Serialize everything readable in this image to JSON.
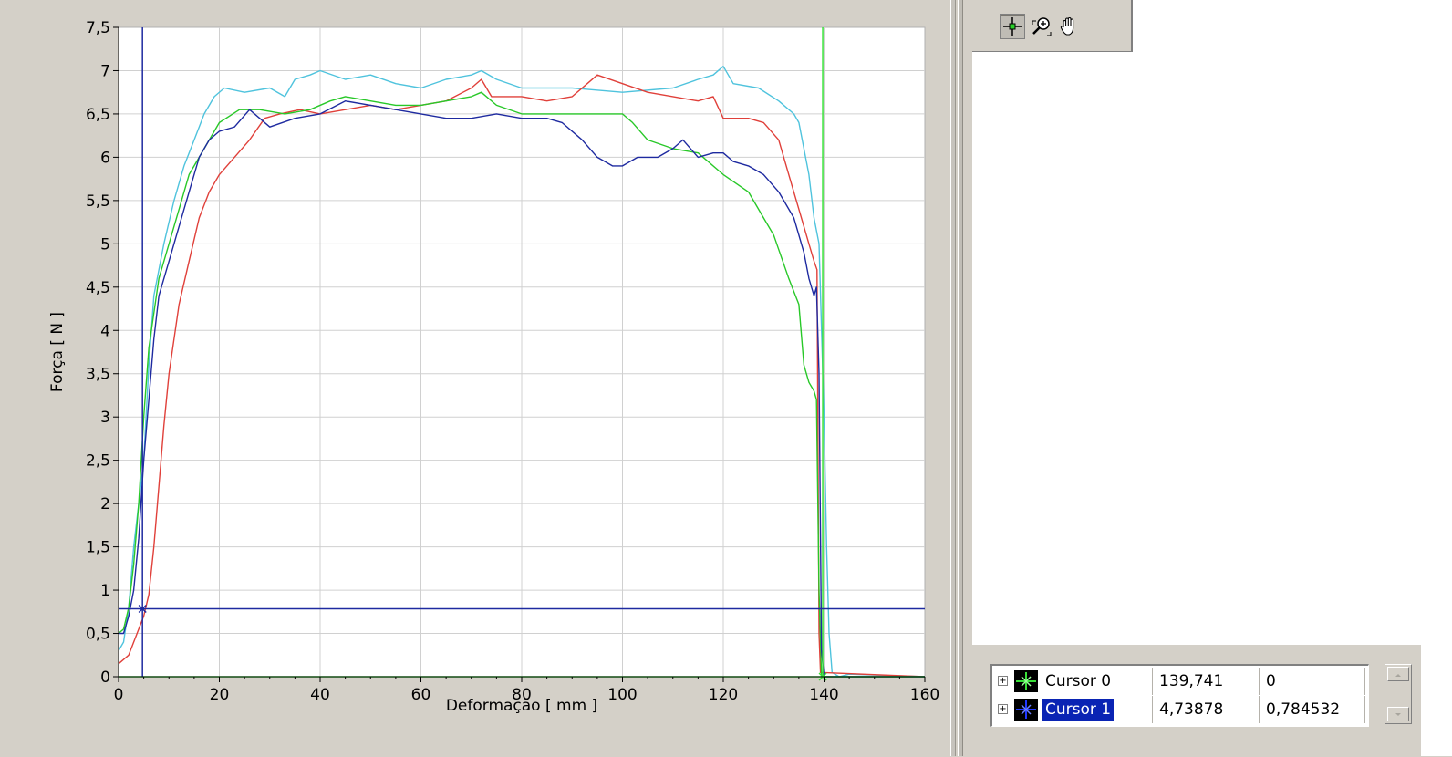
{
  "chart_data": {
    "type": "line",
    "xlabel": "Deformação [ mm ]",
    "ylabel": "Força [ N ]",
    "xlim": [
      0,
      160
    ],
    "ylim": [
      0,
      7.5
    ],
    "x_ticks": [
      "0",
      "20",
      "40",
      "60",
      "80",
      "100",
      "120",
      "140",
      "160"
    ],
    "y_ticks": [
      "0",
      "0,5",
      "1",
      "1,5",
      "2",
      "2,5",
      "3",
      "3,5",
      "4",
      "4,5",
      "5",
      "5,5",
      "6",
      "6,5",
      "7",
      "7,5"
    ],
    "grid": true,
    "series": [
      {
        "color": "#4fc3dd",
        "points": [
          [
            0,
            0.3
          ],
          [
            1,
            0.4
          ],
          [
            2,
            0.8
          ],
          [
            3,
            1.5
          ],
          [
            5,
            2.5
          ],
          [
            6,
            3.6
          ],
          [
            7,
            4.4
          ],
          [
            9,
            5.0
          ],
          [
            11,
            5.5
          ],
          [
            13,
            5.9
          ],
          [
            15,
            6.2
          ],
          [
            17,
            6.5
          ],
          [
            19,
            6.7
          ],
          [
            21,
            6.8
          ],
          [
            25,
            6.75
          ],
          [
            30,
            6.8
          ],
          [
            33,
            6.7
          ],
          [
            35,
            6.9
          ],
          [
            38,
            6.95
          ],
          [
            40,
            7.0
          ],
          [
            45,
            6.9
          ],
          [
            50,
            6.95
          ],
          [
            55,
            6.85
          ],
          [
            60,
            6.8
          ],
          [
            65,
            6.9
          ],
          [
            70,
            6.95
          ],
          [
            72,
            7.0
          ],
          [
            75,
            6.9
          ],
          [
            80,
            6.8
          ],
          [
            90,
            6.8
          ],
          [
            100,
            6.75
          ],
          [
            110,
            6.8
          ],
          [
            115,
            6.9
          ],
          [
            118,
            6.95
          ],
          [
            120,
            7.05
          ],
          [
            122,
            6.85
          ],
          [
            127,
            6.8
          ],
          [
            131,
            6.65
          ],
          [
            134,
            6.5
          ],
          [
            135,
            6.4
          ],
          [
            137,
            5.8
          ],
          [
            138,
            5.3
          ],
          [
            139,
            5.0
          ],
          [
            140,
            3.0
          ],
          [
            140.5,
            1.5
          ],
          [
            141,
            0.5
          ],
          [
            141.6,
            0.05
          ],
          [
            143,
            0.0
          ],
          [
            145,
            0.03
          ],
          [
            160,
            0.0
          ]
        ]
      },
      {
        "color": "#e0403a",
        "points": [
          [
            0,
            0.15
          ],
          [
            2,
            0.25
          ],
          [
            4,
            0.55
          ],
          [
            5,
            0.7
          ],
          [
            6,
            0.95
          ],
          [
            7,
            1.5
          ],
          [
            8,
            2.2
          ],
          [
            9,
            2.9
          ],
          [
            10,
            3.5
          ],
          [
            11,
            3.9
          ],
          [
            12,
            4.3
          ],
          [
            14,
            4.8
          ],
          [
            16,
            5.3
          ],
          [
            18,
            5.6
          ],
          [
            20,
            5.8
          ],
          [
            23,
            6.0
          ],
          [
            26,
            6.2
          ],
          [
            29,
            6.45
          ],
          [
            32,
            6.5
          ],
          [
            36,
            6.55
          ],
          [
            40,
            6.5
          ],
          [
            45,
            6.55
          ],
          [
            50,
            6.6
          ],
          [
            55,
            6.55
          ],
          [
            60,
            6.6
          ],
          [
            65,
            6.65
          ],
          [
            70,
            6.8
          ],
          [
            72,
            6.9
          ],
          [
            74,
            6.7
          ],
          [
            80,
            6.7
          ],
          [
            85,
            6.65
          ],
          [
            90,
            6.7
          ],
          [
            95,
            6.95
          ],
          [
            100,
            6.85
          ],
          [
            105,
            6.75
          ],
          [
            110,
            6.7
          ],
          [
            115,
            6.65
          ],
          [
            118,
            6.7
          ],
          [
            120,
            6.45
          ],
          [
            125,
            6.45
          ],
          [
            128,
            6.4
          ],
          [
            131,
            6.2
          ],
          [
            133,
            5.8
          ],
          [
            135,
            5.4
          ],
          [
            137,
            5.0
          ],
          [
            138,
            4.8
          ],
          [
            138.6,
            4.7
          ],
          [
            139,
            0.5
          ],
          [
            139.3,
            0.05
          ],
          [
            160,
            0.0
          ]
        ]
      },
      {
        "color": "#28c828",
        "points": [
          [
            0,
            0.5
          ],
          [
            1,
            0.55
          ],
          [
            2,
            0.8
          ],
          [
            3,
            1.3
          ],
          [
            4,
            2.0
          ],
          [
            5,
            3.0
          ],
          [
            6,
            3.8
          ],
          [
            8,
            4.6
          ],
          [
            10,
            5.0
          ],
          [
            12,
            5.4
          ],
          [
            14,
            5.8
          ],
          [
            16,
            6.0
          ],
          [
            18,
            6.2
          ],
          [
            20,
            6.4
          ],
          [
            24,
            6.55
          ],
          [
            28,
            6.55
          ],
          [
            33,
            6.5
          ],
          [
            38,
            6.55
          ],
          [
            42,
            6.65
          ],
          [
            45,
            6.7
          ],
          [
            50,
            6.65
          ],
          [
            55,
            6.6
          ],
          [
            60,
            6.6
          ],
          [
            65,
            6.65
          ],
          [
            70,
            6.7
          ],
          [
            72,
            6.75
          ],
          [
            75,
            6.6
          ],
          [
            80,
            6.5
          ],
          [
            85,
            6.5
          ],
          [
            90,
            6.5
          ],
          [
            95,
            6.5
          ],
          [
            100,
            6.5
          ],
          [
            102,
            6.4
          ],
          [
            105,
            6.2
          ],
          [
            110,
            6.1
          ],
          [
            115,
            6.05
          ],
          [
            120,
            5.8
          ],
          [
            125,
            5.6
          ],
          [
            128,
            5.3
          ],
          [
            130,
            5.1
          ],
          [
            133,
            4.6
          ],
          [
            135,
            4.3
          ],
          [
            136,
            3.6
          ],
          [
            137,
            3.4
          ],
          [
            138,
            3.3
          ],
          [
            138.5,
            3.2
          ],
          [
            139,
            1.0
          ],
          [
            139.5,
            0.0
          ],
          [
            160,
            0.0
          ]
        ]
      },
      {
        "color": "#1e2aa0",
        "points": [
          [
            0,
            0.5
          ],
          [
            1,
            0.5
          ],
          [
            2,
            0.7
          ],
          [
            3,
            1.0
          ],
          [
            4,
            1.6
          ],
          [
            5,
            2.5
          ],
          [
            6,
            3.2
          ],
          [
            7,
            3.9
          ],
          [
            8,
            4.4
          ],
          [
            10,
            4.8
          ],
          [
            12,
            5.2
          ],
          [
            14,
            5.6
          ],
          [
            16,
            6.0
          ],
          [
            18,
            6.2
          ],
          [
            20,
            6.3
          ],
          [
            23,
            6.35
          ],
          [
            26,
            6.55
          ],
          [
            28,
            6.45
          ],
          [
            30,
            6.35
          ],
          [
            35,
            6.45
          ],
          [
            40,
            6.5
          ],
          [
            45,
            6.65
          ],
          [
            50,
            6.6
          ],
          [
            55,
            6.55
          ],
          [
            60,
            6.5
          ],
          [
            65,
            6.45
          ],
          [
            70,
            6.45
          ],
          [
            75,
            6.5
          ],
          [
            80,
            6.45
          ],
          [
            85,
            6.45
          ],
          [
            88,
            6.4
          ],
          [
            92,
            6.2
          ],
          [
            95,
            6.0
          ],
          [
            98,
            5.9
          ],
          [
            100,
            5.9
          ],
          [
            103,
            6.0
          ],
          [
            107,
            6.0
          ],
          [
            110,
            6.1
          ],
          [
            112,
            6.2
          ],
          [
            115,
            6.0
          ],
          [
            118,
            6.05
          ],
          [
            120,
            6.05
          ],
          [
            122,
            5.95
          ],
          [
            125,
            5.9
          ],
          [
            128,
            5.8
          ],
          [
            131,
            5.6
          ],
          [
            134,
            5.3
          ],
          [
            136,
            4.9
          ],
          [
            137,
            4.6
          ],
          [
            138,
            4.4
          ],
          [
            138.5,
            4.5
          ],
          [
            139,
            3.5
          ],
          [
            139.5,
            0.3
          ],
          [
            140,
            0.0
          ],
          [
            160,
            0.0
          ]
        ]
      }
    ],
    "cursors": [
      {
        "name": "Cursor 0",
        "color": "#38e038",
        "x": 139.741,
        "y": 0
      },
      {
        "name": "Cursor 1",
        "color": "#1e2aa0",
        "x": 4.73878,
        "y": 0.784532
      }
    ]
  },
  "legend": {
    "rows": [
      {
        "expand": "+",
        "name": "Cursor 0",
        "x": "139,741",
        "y": "0",
        "swatch_color": "#38e038",
        "selected": false
      },
      {
        "expand": "+",
        "name": "Cursor 1",
        "x": "4,73878",
        "y": "0,784532",
        "swatch_color": "#2038ff",
        "selected": true
      }
    ]
  },
  "palette": {
    "tools": [
      {
        "id": "cursor-move-tool",
        "icon": "crosshair-icon"
      },
      {
        "id": "zoom-tool",
        "icon": "zoom-icon"
      },
      {
        "id": "pan-tool",
        "icon": "hand-icon"
      }
    ]
  }
}
